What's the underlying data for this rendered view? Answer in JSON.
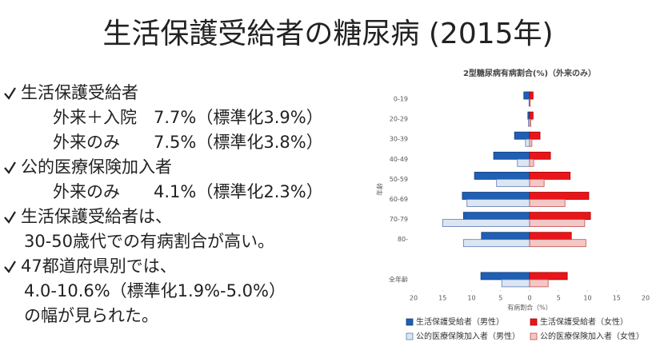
{
  "title": "生活保護受給者の糖尿病 (2015年)",
  "bullets": [
    {
      "heading": "生活保護受給者",
      "lines": [
        "外来＋入院　7.7%（標準化3.9%）",
        "外来のみ　　7.5%（標準化3.8%）"
      ]
    },
    {
      "heading": "公的医療保険加入者",
      "lines": [
        "外来のみ　　4.1%（標準化2.3%）"
      ]
    },
    {
      "heading": "生活保護受給者は、",
      "lines": [
        "30-50歳代での有病割合が高い。"
      ]
    },
    {
      "heading": "47都道府県別では、",
      "lines": [
        "4.0-10.6%（標準化1.9%-5.0%）",
        "の幅が見られた。"
      ]
    }
  ],
  "chart_data": {
    "type": "bar",
    "orientation": "horizontal",
    "title": "2型糖尿病有病割合(%)（外来のみ）",
    "x_label": "有病割合（%）",
    "y_label": "年齢",
    "categories": [
      "0-19",
      "20-29",
      "30-39",
      "40-49",
      "50-59",
      "60-69",
      "70-79",
      "80-",
      null,
      "全年齢"
    ],
    "series": [
      {
        "name": "生活保護受給者（男性）",
        "color": "#1f5fb4",
        "values": [
          -1.0,
          -0.3,
          -2.6,
          -6.2,
          -9.5,
          -11.6,
          -11.4,
          -8.3,
          null,
          -8.4
        ]
      },
      {
        "name": "生活保護受給者（女性）",
        "color": "#e8161b",
        "values": [
          0.6,
          0.6,
          1.8,
          3.6,
          7.0,
          10.2,
          10.5,
          7.2,
          null,
          6.5
        ]
      },
      {
        "name": "公的医療保険加入者（男性）",
        "color": "#dce6f2",
        "values": [
          -0.1,
          -0.2,
          -0.7,
          -2.1,
          -5.7,
          -10.8,
          -15.0,
          -11.4,
          null,
          -4.8
        ]
      },
      {
        "name": "公的医療保険加入者（女性）",
        "color": "#f4c7c7",
        "values": [
          0.1,
          0.2,
          0.4,
          0.7,
          2.5,
          6.1,
          9.5,
          9.7,
          null,
          3.2
        ]
      }
    ],
    "xlim": [
      -20,
      20
    ],
    "xticks": [
      {
        "value": -20,
        "label": "20"
      },
      {
        "value": -15,
        "label": "15"
      },
      {
        "value": -10,
        "label": "10"
      },
      {
        "value": -5,
        "label": "5"
      },
      0,
      5,
      10,
      15,
      20
    ],
    "grid": false,
    "legend": "bottom"
  }
}
